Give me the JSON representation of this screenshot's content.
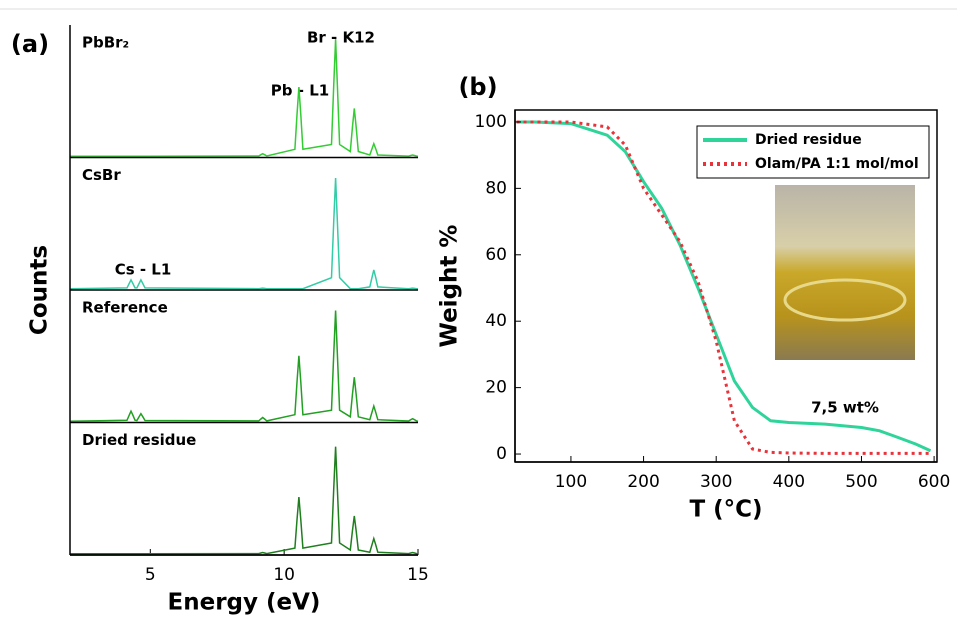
{
  "chart_data": [
    {
      "type": "line",
      "label": "(a)",
      "subplots": true,
      "xlabel": "Energy (eV)",
      "ylabel": "Counts",
      "xlim": [
        2,
        15
      ],
      "xticks": [
        5,
        10,
        15
      ],
      "ylim": [
        0,
        100
      ],
      "annotations": [
        "Pb - L1",
        "Br - K12",
        "Cs - L1"
      ],
      "x": [
        2,
        4.13,
        4.21,
        4.28,
        4.35,
        4.43,
        4.5,
        4.58,
        4.65,
        4.72,
        4.8,
        9.05,
        9.13,
        9.2,
        9.27,
        9.35,
        10.4,
        10.48,
        10.55,
        10.62,
        10.7,
        11.77,
        11.85,
        11.92,
        11.99,
        12.07,
        12.47,
        12.55,
        12.62,
        12.69,
        12.77,
        13.2,
        13.28,
        13.35,
        13.42,
        13.5,
        14.65,
        14.73,
        14.8,
        14.87,
        14.95,
        15
      ],
      "series": [
        {
          "name": "PbBr₂",
          "color": "#33cc33",
          "values": [
            1,
            1,
            1,
            1,
            1,
            1,
            1,
            1,
            1,
            1,
            1,
            1.2,
            2.2,
            3,
            2.2,
            1.2,
            6.5,
            34,
            56,
            34,
            6.5,
            10.3,
            56.8,
            94,
            56.8,
            10.3,
            4.8,
            23.8,
            39,
            23.8,
            4.8,
            2,
            7,
            11,
            7,
            2,
            1.1,
            1.6,
            2,
            1.6,
            1.1,
            1
          ]
        },
        {
          "name": "CsBr",
          "color": "#33cca6",
          "values": [
            1,
            1.7,
            5.2,
            8,
            5.2,
            1.7,
            1.7,
            5.2,
            8,
            5.2,
            1.7,
            1.05,
            1.3,
            1.5,
            1.3,
            1.05,
            1,
            1,
            1,
            1,
            1,
            9.8,
            53.8,
            89,
            53.8,
            9.8,
            1,
            1,
            1,
            1,
            1,
            2.5,
            10,
            16,
            10,
            2.5,
            1.05,
            1.3,
            1.5,
            1.3,
            1.05,
            1
          ]
        },
        {
          "name": "Reference",
          "color": "#22a022",
          "values": [
            1,
            1.8,
            5.8,
            9,
            5.8,
            1.8,
            1.6,
            4.6,
            7,
            4.6,
            1.6,
            1.3,
            2.8,
            4,
            2.8,
            1.3,
            6.2,
            32.2,
            53,
            32.2,
            6.2,
            9.8,
            53.8,
            89,
            53.8,
            9.8,
            4.5,
            22,
            36,
            22,
            4.5,
            2.2,
            8.2,
            13,
            8.2,
            2.2,
            1.2,
            2.2,
            3,
            2.2,
            1.2,
            1
          ]
        },
        {
          "name": "Dried residue",
          "color": "#1f7f1f",
          "values": [
            1,
            1,
            1,
            1,
            1,
            1,
            1,
            1,
            1,
            1,
            1,
            1.1,
            1.6,
            2,
            1.6,
            1.1,
            5.5,
            28,
            46,
            28,
            5.5,
            9.5,
            52,
            86,
            52,
            9.5,
            4,
            19,
            31,
            19,
            4,
            2.2,
            8.2,
            13,
            8.2,
            2.2,
            1.1,
            1.6,
            2,
            1.6,
            1.1,
            1
          ]
        }
      ]
    },
    {
      "type": "line",
      "label": "(b)",
      "xlabel": "T (°C)",
      "ylabel": "Weight %",
      "xlim": [
        23,
        604
      ],
      "xticks": [
        100,
        200,
        300,
        400,
        500,
        600
      ],
      "ylim": [
        -2.4,
        103.6
      ],
      "yticks": [
        0,
        20,
        40,
        60,
        80,
        100
      ],
      "legend": "upper right",
      "annotations": [
        "7,5 wt%"
      ],
      "x": [
        25,
        50,
        100,
        150,
        175,
        200,
        225,
        250,
        275,
        300,
        325,
        350,
        375,
        400,
        450,
        500,
        525,
        550,
        575,
        595
      ],
      "series": [
        {
          "name": "Dried residue",
          "color": "#2fd49a",
          "linestyle": "solid",
          "values": [
            100,
            100,
            99.5,
            96,
            91,
            82,
            74,
            63,
            50,
            36,
            22,
            14,
            10,
            9.5,
            9,
            8,
            7,
            5,
            3,
            1
          ]
        },
        {
          "name": "Olam/PA 1:1 mol/mol",
          "color": "#e8333a",
          "linestyle": "dotted",
          "values": [
            100,
            100,
            100,
            98.5,
            93,
            80,
            72,
            64,
            52,
            34,
            10,
            1.5,
            0.5,
            0.3,
            0.2,
            0.2,
            0.2,
            0.2,
            0.2,
            0.2
          ]
        }
      ]
    }
  ]
}
